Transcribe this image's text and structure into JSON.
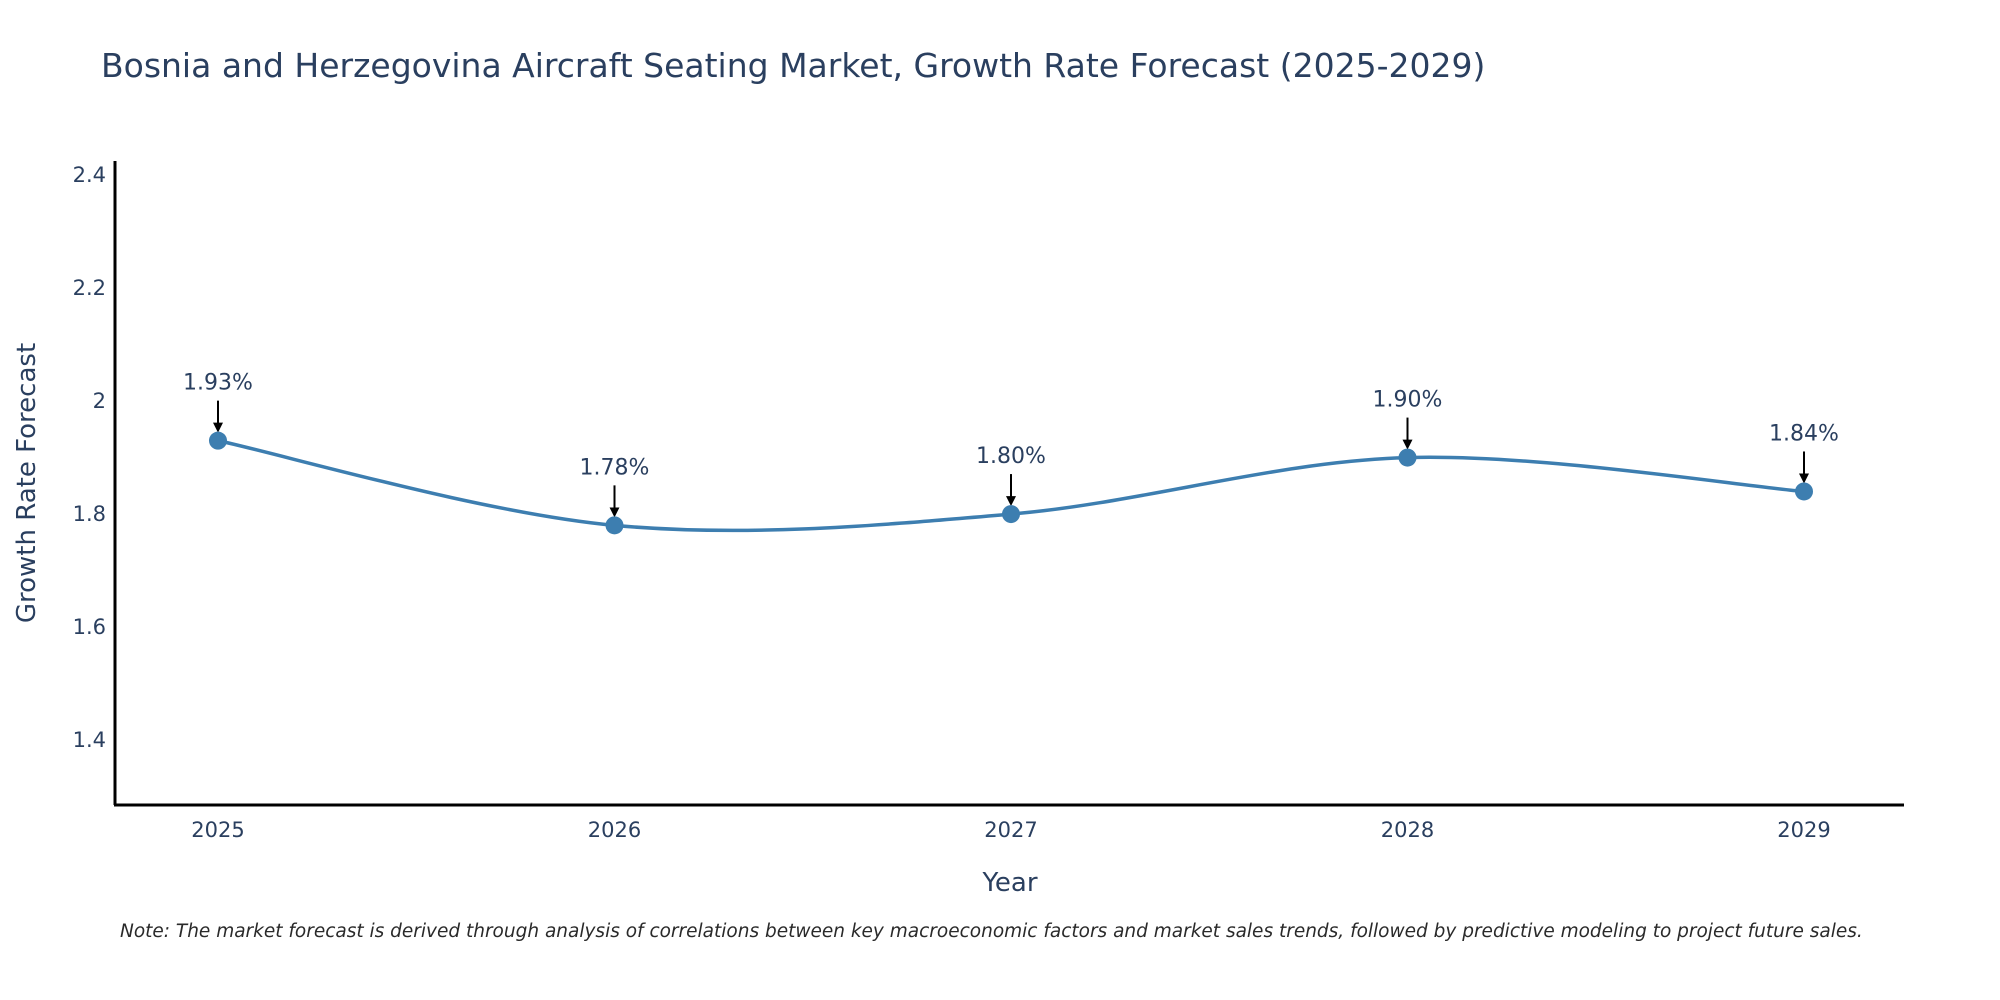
{
  "chart_data": {
    "type": "line",
    "title": "Bosnia and Herzegovina Aircraft Seating Market, Growth Rate Forecast (2025-2029)",
    "xlabel": "Year",
    "ylabel": "Growth Rate Forecast",
    "categories": [
      "2025",
      "2026",
      "2027",
      "2028",
      "2029"
    ],
    "values": [
      1.93,
      1.78,
      1.8,
      1.9,
      1.84
    ],
    "data_labels": [
      "1.93%",
      "1.78%",
      "1.80%",
      "1.90%",
      "1.84%"
    ],
    "ylim": [
      1.285,
      2.425
    ],
    "yticks": [
      1.4,
      1.6,
      1.8,
      2,
      2.2,
      2.4
    ],
    "ytick_labels": [
      "1.4",
      "1.6",
      "1.8",
      "2",
      "2.2",
      "2.4"
    ],
    "grid": false,
    "line_shape": "spline",
    "line_color": "#3d7eb0",
    "marker_color": "#3d7eb0",
    "arrow_color": "#000000",
    "note": "Note: The market forecast is derived through analysis of correlations between key macroeconomic factors and market sales trends, followed by predictive modeling to project future sales."
  }
}
